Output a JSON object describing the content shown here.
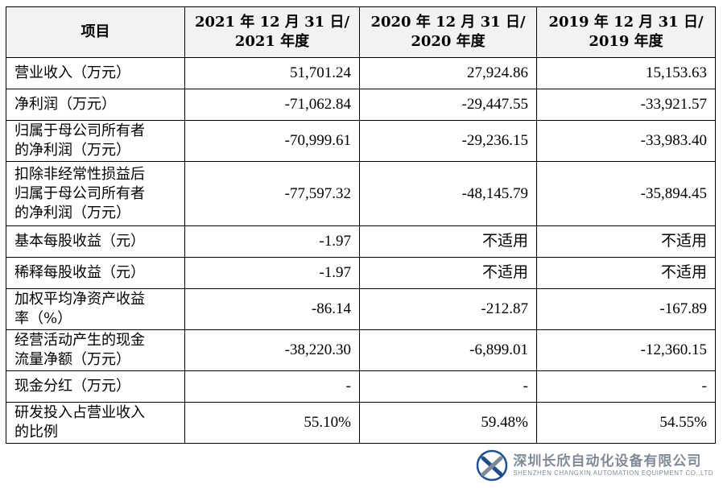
{
  "table": {
    "headers": [
      "项目",
      "2021 年 12 月 31 日/\n2021 年度",
      "2020 年 12 月 31 日/\n2020 年度",
      "2019 年 12 月 31 日/\n2019 年度"
    ],
    "rows": [
      {
        "label": "营业收入（万元）",
        "values": [
          "51,701.24",
          "27,924.86",
          "15,153.63"
        ]
      },
      {
        "label": "净利润（万元）",
        "values": [
          "-71,062.84",
          "-29,447.55",
          "-33,921.57"
        ]
      },
      {
        "label": "归属于母公司所有者\n的净利润（万元）",
        "values": [
          "-70,999.61",
          "-29,236.15",
          "-33,983.40"
        ]
      },
      {
        "label": "扣除非经常性损益后\n归属于母公司所有者\n的净利润（万元）",
        "values": [
          "-77,597.32",
          "-48,145.79",
          "-35,894.45"
        ]
      },
      {
        "label": "基本每股收益（元）",
        "values": [
          "-1.97",
          "不适用",
          "不适用"
        ]
      },
      {
        "label": "稀释每股收益（元）",
        "values": [
          "-1.97",
          "不适用",
          "不适用"
        ]
      },
      {
        "label": "加权平均净资产收益\n率（%）",
        "values": [
          "-86.14",
          "-212.87",
          "-167.89"
        ]
      },
      {
        "label": "经营活动产生的现金\n流量净额（万元）",
        "values": [
          "-38,220.30",
          "-6,899.01",
          "-12,360.15"
        ]
      },
      {
        "label": "现金分红（万元）",
        "values": [
          "-",
          "-",
          "-"
        ]
      },
      {
        "label": "研发投入占营业收入\n的比例",
        "values": [
          "55.10%",
          "59.48%",
          "54.55%"
        ]
      }
    ]
  },
  "watermark": {
    "company_cn": "深圳长欣自动化设备有限公司",
    "company_en": "SHENZHEN CHANGXIN AUTOMATION EQUIPMENT CO.,LTD",
    "logo_icon": "cross-x-logo-icon",
    "brand_color": "#1f4e8c",
    "gray_color": "#7f8a96"
  }
}
